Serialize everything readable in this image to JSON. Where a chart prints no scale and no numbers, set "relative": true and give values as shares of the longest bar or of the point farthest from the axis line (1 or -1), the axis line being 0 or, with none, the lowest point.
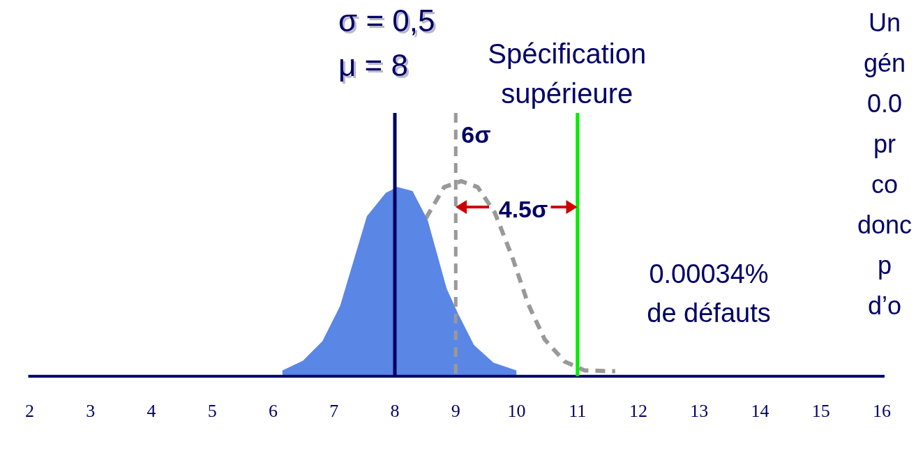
{
  "chart_data": {
    "type": "area",
    "relative": true,
    "xlim": [
      2,
      16
    ],
    "xticks": [
      2,
      3,
      4,
      5,
      6,
      7,
      8,
      9,
      10,
      11,
      12,
      13,
      14,
      15,
      16
    ],
    "grid": false,
    "legend": false,
    "marker": "none",
    "series": [
      {
        "color": "#5a86e6",
        "x": [
          6.15,
          6.49,
          6.81,
          7.1,
          7.54,
          7.85,
          8.04,
          8.29,
          8.54,
          8.85,
          9.04,
          9.3,
          9.62,
          10.0
        ],
        "values": [
          0.03,
          0.08,
          0.18,
          0.36,
          0.82,
          0.94,
          0.97,
          0.95,
          0.8,
          0.45,
          0.32,
          0.16,
          0.07,
          0.03
        ]
      },
      {
        "type": "line",
        "color": "#999999",
        "line_style": "dashed",
        "x": [
          8.51,
          8.81,
          9.09,
          9.36,
          9.64,
          9.93,
          10.19,
          10.46,
          10.79,
          11.12,
          11.62
        ],
        "values": [
          0.81,
          0.97,
          1.0,
          0.97,
          0.84,
          0.61,
          0.37,
          0.19,
          0.075,
          0.03,
          0.026
        ]
      }
    ],
    "ref_lines": [
      {
        "axis": "x",
        "value": 8,
        "color": "#000066",
        "line_style": "solid"
      },
      {
        "axis": "x",
        "value": 9,
        "label": "6σ",
        "color": "#999999",
        "line_style": "dashed"
      },
      {
        "axis": "x",
        "value": 11,
        "label": "Spécification\nsupérieure",
        "color": "#00ee00",
        "line_style": "solid"
      }
    ],
    "annotations": [
      "σ = 0,5",
      "μ = 8",
      "4.5σ",
      "0.00034%\nde défauts",
      "Un\ngén\n0.0\npr\nco\ndonc\np\nd’o"
    ]
  }
}
